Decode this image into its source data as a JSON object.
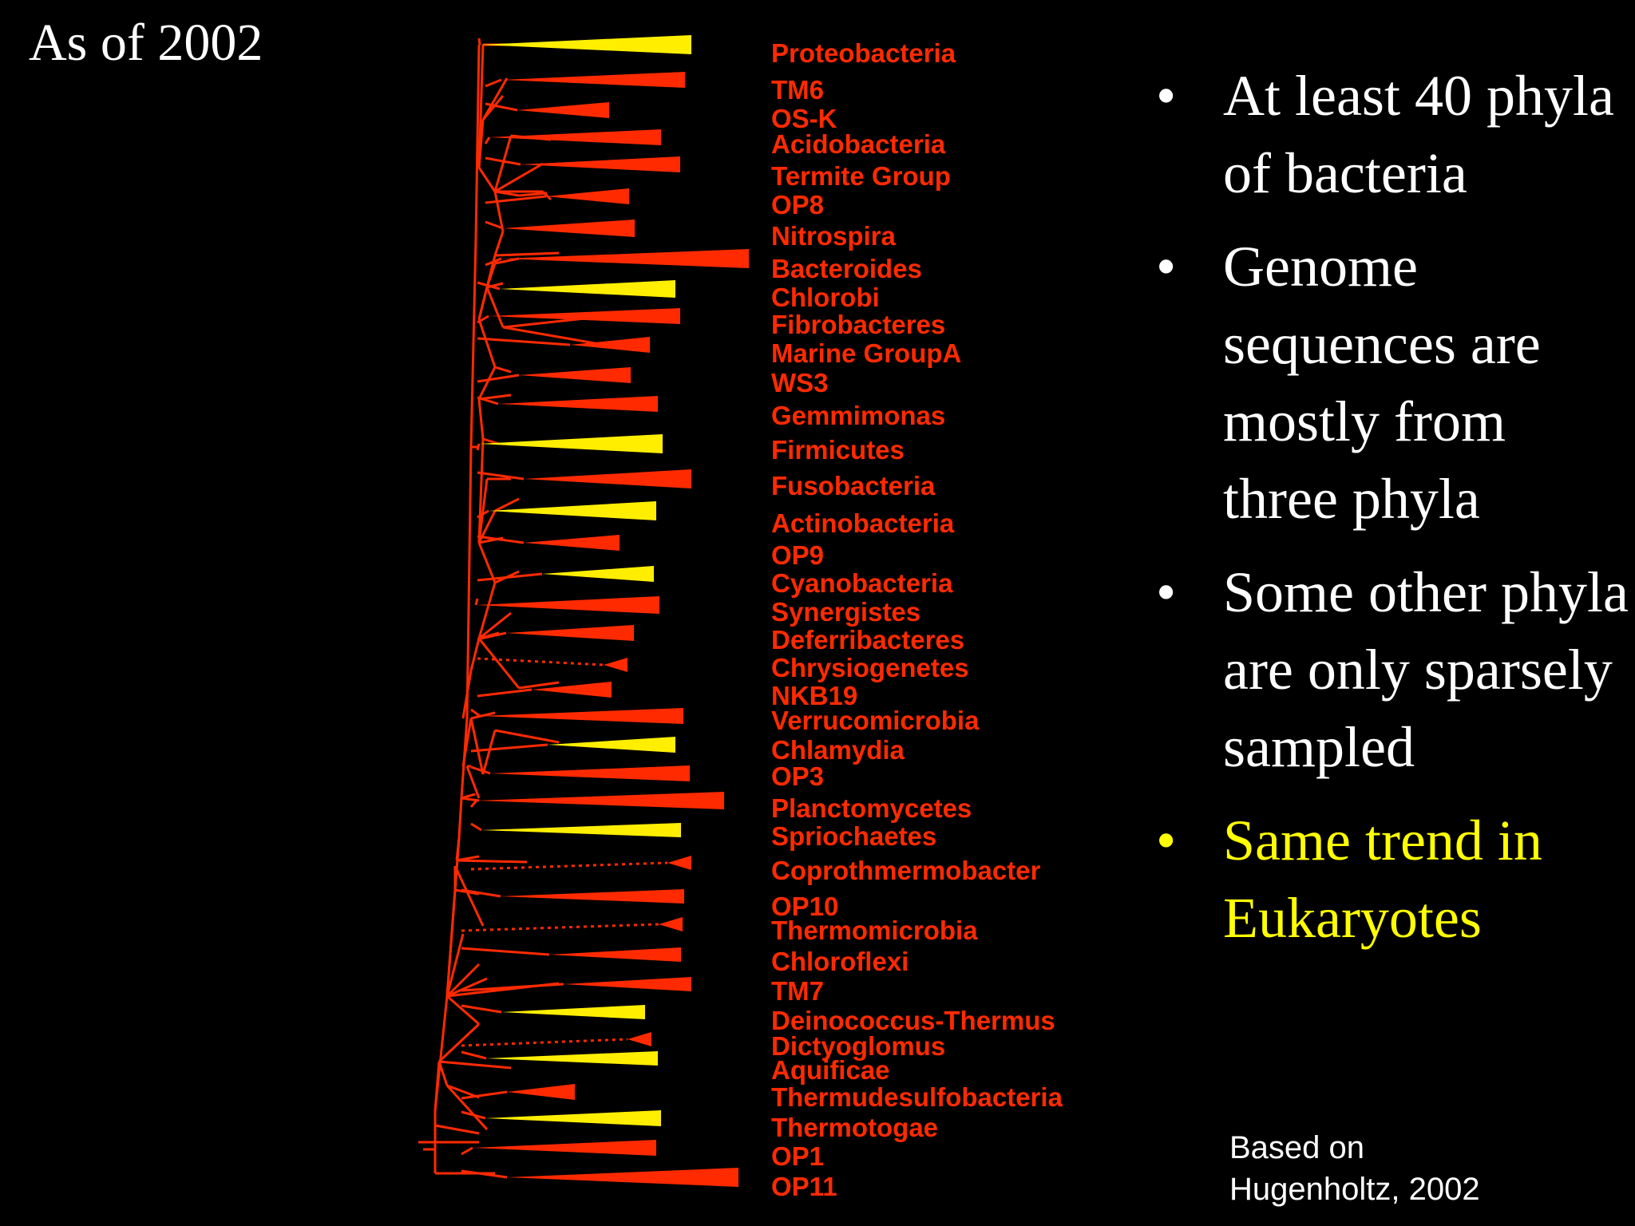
{
  "slide": {
    "corner_title": "As of 2002",
    "bullets": [
      {
        "text": "At least 40 phyla of bacteria",
        "bullet": "•",
        "highlight": false
      },
      {
        "text": "Genome sequences are mostly from three phyla",
        "bullet": "•",
        "highlight": false
      },
      {
        "text": "Some other phyla are only sparsely sampled",
        "bullet": "•",
        "highlight": false
      },
      {
        "text": "Same trend in Eukaryotes",
        "bullet": "•",
        "highlight": true
      }
    ],
    "credit_line1": "Based on",
    "credit_line2": "Hugenholtz, 2002"
  },
  "colors": {
    "background": "#000000",
    "text": "#ffffff",
    "highlight": "#ffff00",
    "branch": "#ff2a00",
    "sequenced": "#ffee00",
    "unsequenced": "#ff2a00"
  },
  "tree": {
    "phyla": [
      {
        "name": "Proteobacteria",
        "sequenced": true
      },
      {
        "name": "TM6",
        "sequenced": false
      },
      {
        "name": "OS-K",
        "sequenced": false
      },
      {
        "name": "Acidobacteria",
        "sequenced": false
      },
      {
        "name": "Termite Group",
        "sequenced": false
      },
      {
        "name": "OP8",
        "sequenced": false
      },
      {
        "name": "Nitrospira",
        "sequenced": false
      },
      {
        "name": "Bacteroides",
        "sequenced": false
      },
      {
        "name": "Chlorobi",
        "sequenced": true
      },
      {
        "name": "Fibrobacteres",
        "sequenced": false
      },
      {
        "name": "Marine GroupA",
        "sequenced": false
      },
      {
        "name": "WS3",
        "sequenced": false
      },
      {
        "name": "Gemmimonas",
        "sequenced": false
      },
      {
        "name": "Firmicutes",
        "sequenced": true
      },
      {
        "name": "Fusobacteria",
        "sequenced": false
      },
      {
        "name": "Actinobacteria",
        "sequenced": true
      },
      {
        "name": "OP9",
        "sequenced": false
      },
      {
        "name": "Cyanobacteria",
        "sequenced": true
      },
      {
        "name": "Synergistes",
        "sequenced": false
      },
      {
        "name": "Deferribacteres",
        "sequenced": false
      },
      {
        "name": "Chrysiogenetes",
        "sequenced": false
      },
      {
        "name": "NKB19",
        "sequenced": false
      },
      {
        "name": "Verrucomicrobia",
        "sequenced": false
      },
      {
        "name": "Chlamydia",
        "sequenced": true
      },
      {
        "name": "OP3",
        "sequenced": false
      },
      {
        "name": "Planctomycetes",
        "sequenced": false
      },
      {
        "name": "Spriochaetes",
        "sequenced": true
      },
      {
        "name": "Coprothmermobacter",
        "sequenced": false
      },
      {
        "name": "OP10",
        "sequenced": false
      },
      {
        "name": "Thermomicrobia",
        "sequenced": false
      },
      {
        "name": "Chloroflexi",
        "sequenced": false
      },
      {
        "name": "TM7",
        "sequenced": false
      },
      {
        "name": "Deinococcus-Thermus",
        "sequenced": true
      },
      {
        "name": "Dictyoglomus",
        "sequenced": false
      },
      {
        "name": "Aquificae",
        "sequenced": true
      },
      {
        "name": "Thermudesulfobacteria",
        "sequenced": false
      },
      {
        "name": "Thermotogae",
        "sequenced": true
      },
      {
        "name": "OP1",
        "sequenced": false
      },
      {
        "name": "OP11",
        "sequenced": false
      }
    ]
  }
}
